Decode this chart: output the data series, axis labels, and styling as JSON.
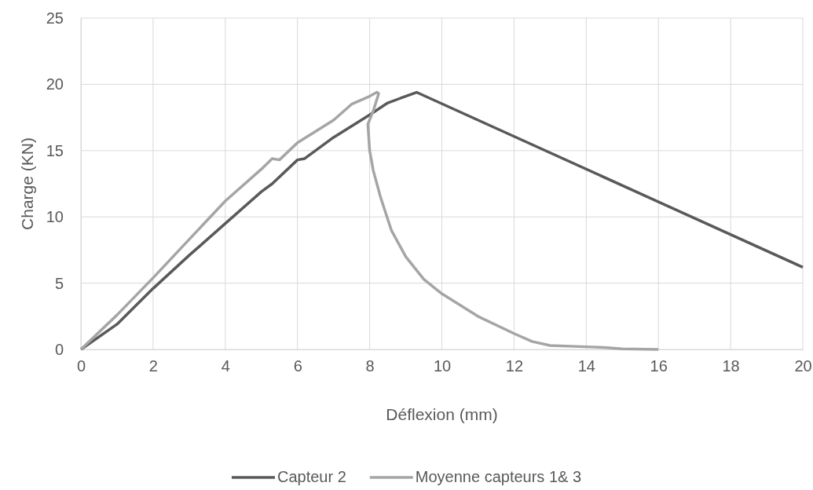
{
  "chart_data": {
    "type": "line",
    "xlabel": "Déflexion (mm)",
    "ylabel": "Charge (KN)",
    "xlim": [
      0,
      20
    ],
    "xticks": [
      0,
      2,
      4,
      6,
      8,
      10,
      12,
      14,
      16,
      18,
      20
    ],
    "ylim": [
      0,
      25
    ],
    "yticks": [
      0,
      5,
      10,
      15,
      20,
      25
    ],
    "grid": true,
    "legend": "bottom",
    "marker": "none",
    "line_style": "solid",
    "series": [
      {
        "name": "Capteur 2",
        "color": "#595959",
        "x": [
          0,
          1,
          2,
          3,
          4,
          5,
          5.3,
          6,
          6.2,
          7,
          8,
          8.5,
          9.3,
          20
        ],
        "values": [
          0,
          1.9,
          4.6,
          7.1,
          9.5,
          11.9,
          12.5,
          14.3,
          14.4,
          16,
          17.7,
          18.6,
          19.4,
          6.2
        ]
      },
      {
        "name": "Moyenne capteurs 1& 3",
        "color": "#a5a5a5",
        "x": [
          0,
          1,
          2,
          3,
          4,
          5,
          5.3,
          5.5,
          6,
          7,
          7.5,
          8,
          8.2,
          8.25,
          8.1,
          7.95,
          8,
          8.1,
          8.3,
          8.6,
          9,
          9.5,
          10,
          11,
          12,
          12.5,
          13,
          14,
          14.5,
          15,
          16
        ],
        "values": [
          0,
          2.6,
          5.4,
          8.3,
          11.2,
          13.6,
          14.4,
          14.3,
          15.6,
          17.3,
          18.5,
          19.1,
          19.4,
          19.3,
          18,
          17,
          15,
          13.5,
          11.5,
          9,
          7,
          5.3,
          4.2,
          2.5,
          1.2,
          0.6,
          0.3,
          0.2,
          0.15,
          0.05,
          0
        ]
      }
    ]
  }
}
